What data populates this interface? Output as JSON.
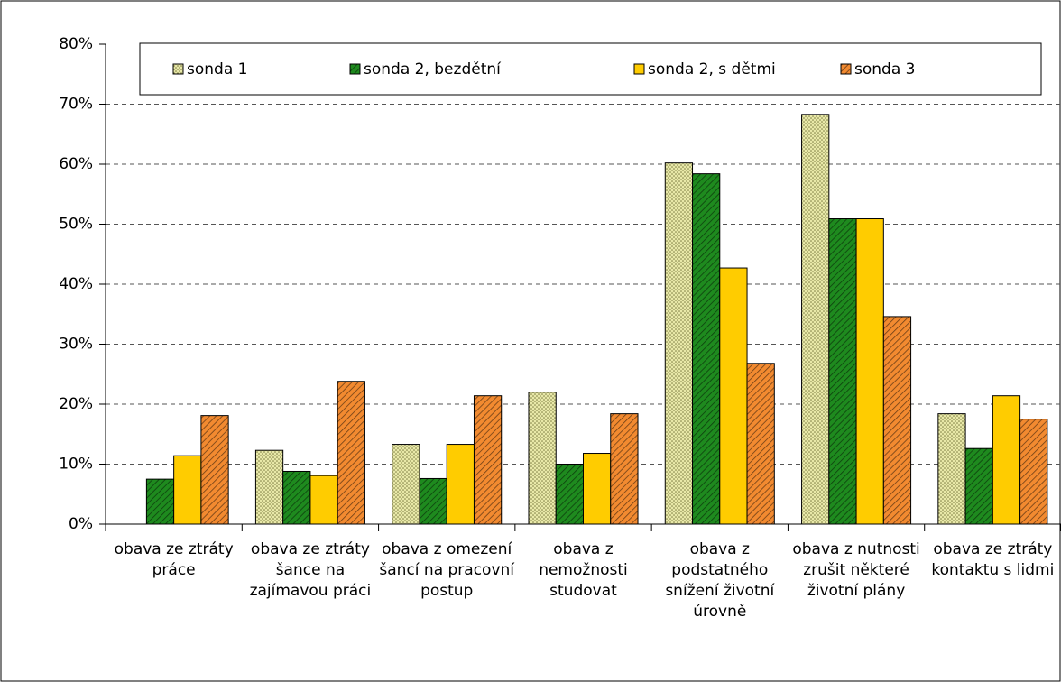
{
  "chart_data": {
    "type": "bar",
    "categories": [
      "obava ze ztráty práce",
      "obava ze ztráty šance na zajímavou práci",
      "obava z omezení šancí na pracovní postup",
      "obava z nemožnosti studovat",
      "obava z podstatného snížení životní úrovně",
      "obava z nutnosti zrušit některé životní plány",
      "obava ze ztráty kontaktu s lidmi"
    ],
    "series": [
      {
        "name": "sonda 1",
        "color": "#e8e8a8",
        "pattern": "dots",
        "values": [
          null,
          12.3,
          13.3,
          22.0,
          60.2,
          68.3,
          18.4
        ]
      },
      {
        "name": "sonda 2, bezdětní",
        "color": "#1e8a1e",
        "pattern": "hatch",
        "values": [
          7.5,
          8.8,
          7.6,
          10.0,
          58.4,
          50.9,
          12.6
        ]
      },
      {
        "name": "sonda 2, s dětmi",
        "color": "#ffcc00",
        "pattern": "solid",
        "values": [
          11.4,
          8.1,
          13.3,
          11.8,
          42.7,
          50.9,
          21.4
        ]
      },
      {
        "name": "sonda 3",
        "color": "#f28a30",
        "pattern": "hatch",
        "values": [
          18.1,
          23.8,
          21.4,
          18.4,
          26.8,
          34.6,
          17.5
        ]
      }
    ],
    "ylim": [
      0,
      80
    ],
    "yticks": [
      {
        "value": 0,
        "label": "0%"
      },
      {
        "value": 10,
        "label": "10%"
      },
      {
        "value": 20,
        "label": "20%"
      },
      {
        "value": 30,
        "label": "30%"
      },
      {
        "value": 40,
        "label": "40%"
      },
      {
        "value": 50,
        "label": "50%"
      },
      {
        "value": 60,
        "label": "60%"
      },
      {
        "value": 70,
        "label": "70%"
      },
      {
        "value": 80,
        "label": "80%"
      }
    ],
    "grid": true,
    "legend": "top"
  }
}
